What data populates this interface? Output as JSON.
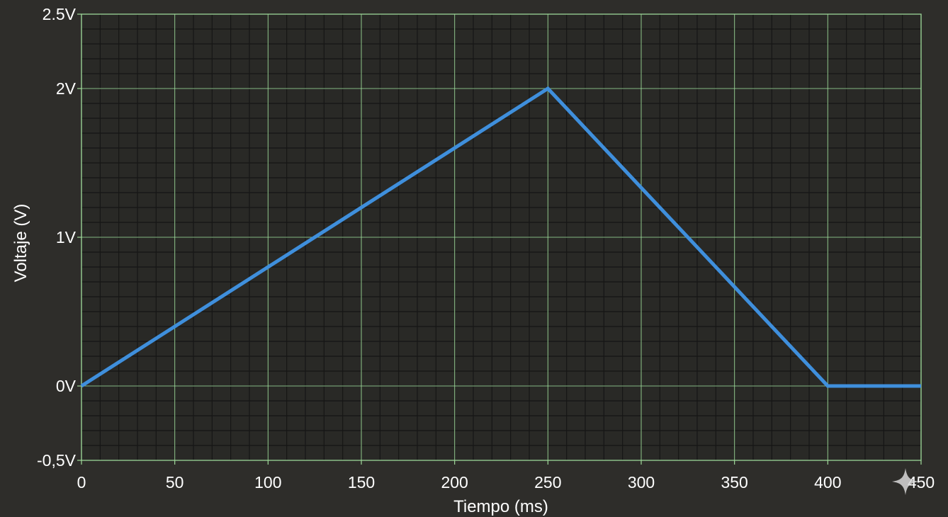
{
  "chart_data": {
    "type": "line",
    "title": "",
    "xlabel": "Tiempo (ms)",
    "ylabel": "Voltaje (V)",
    "xlim": [
      0,
      450
    ],
    "ylim": [
      -0.5,
      2.5
    ],
    "x_ticks": [
      {
        "value": 0,
        "label": "0"
      },
      {
        "value": 50,
        "label": "50"
      },
      {
        "value": 100,
        "label": "100"
      },
      {
        "value": 150,
        "label": "150"
      },
      {
        "value": 200,
        "label": "200"
      },
      {
        "value": 250,
        "label": "250"
      },
      {
        "value": 300,
        "label": "300"
      },
      {
        "value": 350,
        "label": "350"
      },
      {
        "value": 400,
        "label": "400"
      },
      {
        "value": 450,
        "label": "450"
      }
    ],
    "y_ticks": [
      {
        "value": -0.5,
        "label": "-0,5V"
      },
      {
        "value": 0,
        "label": "0V"
      },
      {
        "value": 1,
        "label": "1V"
      },
      {
        "value": 2,
        "label": "2V"
      },
      {
        "value": 2.5,
        "label": "2.5V"
      }
    ],
    "grid": true,
    "series": [
      {
        "x": [
          0,
          250,
          400,
          450
        ],
        "y": [
          0,
          2,
          0,
          0
        ]
      }
    ]
  },
  "colors": {
    "background": "#2e2d2a",
    "plot_background": "#292926",
    "major_grid": "#9fd99a",
    "minor_grid": "#161615",
    "line": "#3f8fdc",
    "text": "#ffffff"
  },
  "icons": [
    "sparkle-icon"
  ]
}
